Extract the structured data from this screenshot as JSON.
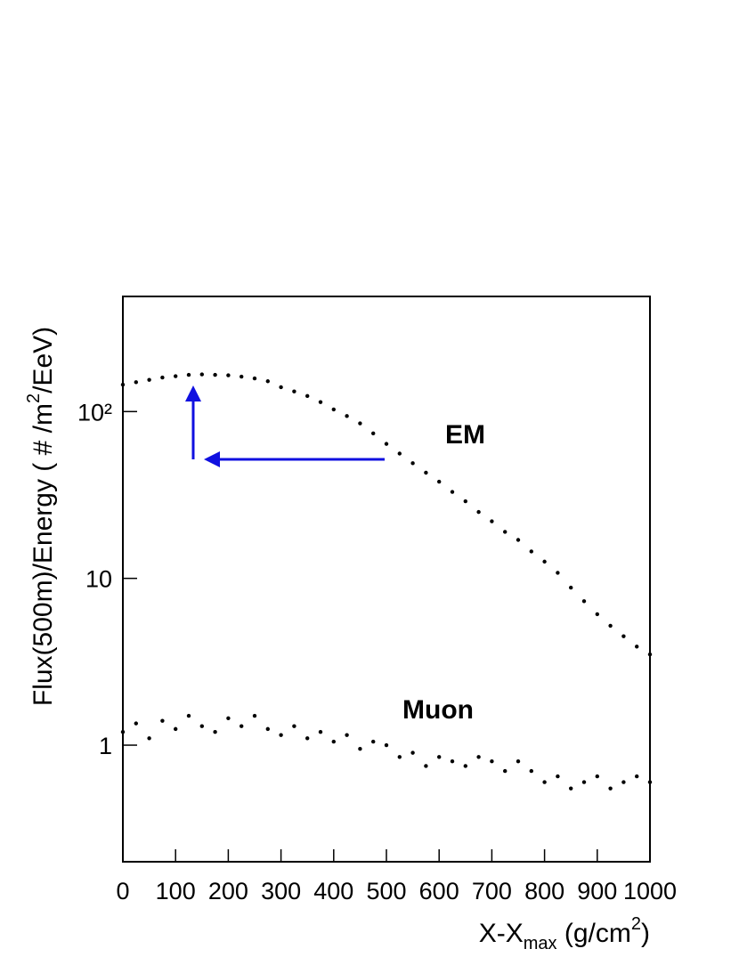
{
  "chart_data": {
    "type": "scatter",
    "x_label": [
      "X-X",
      "max",
      " (g/cm",
      "2",
      ")"
    ],
    "y_label": [
      "Flux(500m)/Energy ( # /m",
      "2",
      "/EeV)"
    ],
    "annotations": [
      "EM",
      "Muon"
    ],
    "x": [
      0,
      25,
      50,
      75,
      100,
      125,
      150,
      175,
      200,
      225,
      250,
      275,
      300,
      325,
      350,
      375,
      400,
      425,
      450,
      475,
      500,
      525,
      550,
      575,
      600,
      625,
      650,
      675,
      700,
      725,
      750,
      775,
      800,
      825,
      850,
      875,
      900,
      925,
      950,
      975,
      1000
    ],
    "series": [
      {
        "name": "EM",
        "color": "#000000",
        "values": [
          145,
          150,
          155,
          160,
          163,
          166,
          167,
          166,
          165,
          162,
          158,
          152,
          140,
          132,
          124,
          114,
          103,
          94,
          85,
          74,
          64,
          56,
          49,
          43,
          38,
          33,
          29,
          25,
          22,
          19,
          17,
          14.5,
          12.6,
          10.8,
          8.8,
          7.3,
          6.1,
          5.2,
          4.5,
          3.9,
          3.5
        ]
      },
      {
        "name": "Muon",
        "color": "#000000",
        "values": [
          1.2,
          1.35,
          1.1,
          1.4,
          1.25,
          1.5,
          1.3,
          1.2,
          1.45,
          1.3,
          1.5,
          1.25,
          1.15,
          1.3,
          1.1,
          1.2,
          1.05,
          1.15,
          0.95,
          1.05,
          1.0,
          0.85,
          0.9,
          0.75,
          0.85,
          0.8,
          0.75,
          0.85,
          0.8,
          0.7,
          0.8,
          0.7,
          0.6,
          0.65,
          0.55,
          0.6,
          0.65,
          0.55,
          0.6,
          0.65,
          0.6
        ]
      }
    ],
    "xlim": [
      0,
      1000
    ],
    "xticks": [
      0,
      100,
      200,
      300,
      400,
      500,
      600,
      700,
      800,
      900,
      1000
    ],
    "ylim": [
      0.2,
      490
    ],
    "log_y": true,
    "yticks": [
      1,
      10,
      {
        "value": 100,
        "label": "10²"
      }
    ]
  }
}
